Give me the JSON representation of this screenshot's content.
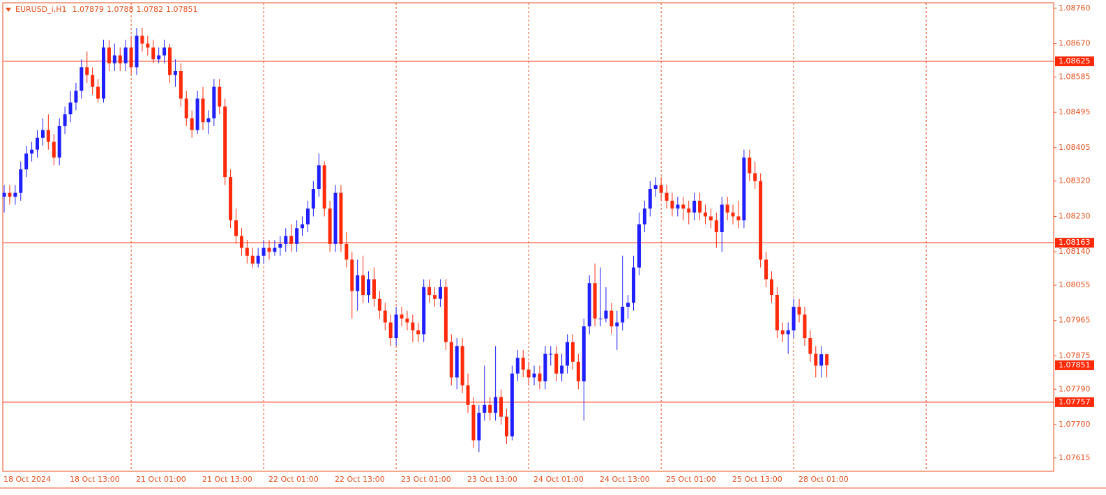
{
  "chart_data": {
    "type": "candlestick",
    "title": "EURUSD_i,H1",
    "ohlc": [
      [
        1.0828,
        1.0831,
        1.0824,
        1.0829
      ],
      [
        1.0829,
        1.0831,
        1.0826,
        1.0828
      ],
      [
        1.0828,
        1.0831,
        1.0826,
        1.0829
      ],
      [
        1.0829,
        1.0837,
        1.0827,
        1.0835
      ],
      [
        1.0835,
        1.0841,
        1.0833,
        1.0839
      ],
      [
        1.0839,
        1.0842,
        1.0837,
        1.084
      ],
      [
        1.084,
        1.0845,
        1.0838,
        1.0843
      ],
      [
        1.0843,
        1.0848,
        1.0841,
        1.0845
      ],
      [
        1.0845,
        1.0849,
        1.084,
        1.0842
      ],
      [
        1.0842,
        1.0844,
        1.0836,
        1.0838
      ],
      [
        1.0838,
        1.0848,
        1.0836,
        1.0846
      ],
      [
        1.0846,
        1.0851,
        1.0844,
        1.0849
      ],
      [
        1.0849,
        1.0855,
        1.0847,
        1.0852
      ],
      [
        1.0852,
        1.0857,
        1.085,
        1.0855
      ],
      [
        1.0855,
        1.0863,
        1.0853,
        1.0861
      ],
      [
        1.0861,
        1.0865,
        1.0857,
        1.0859
      ],
      [
        1.0859,
        1.0861,
        1.0854,
        1.0856
      ],
      [
        1.0856,
        1.0858,
        1.0852,
        1.0853
      ],
      [
        1.0853,
        1.0868,
        1.0852,
        1.0866
      ],
      [
        1.0866,
        1.0868,
        1.086,
        1.0862
      ],
      [
        1.0862,
        1.0867,
        1.086,
        1.0864
      ],
      [
        1.0864,
        1.0866,
        1.086,
        1.0862
      ],
      [
        1.0862,
        1.0868,
        1.086,
        1.0866
      ],
      [
        1.0866,
        1.0869,
        1.0859,
        1.0861
      ],
      [
        1.0861,
        1.0871,
        1.0859,
        1.0869
      ],
      [
        1.0869,
        1.0871,
        1.0865,
        1.0867
      ],
      [
        1.0867,
        1.0869,
        1.0864,
        1.0866
      ],
      [
        1.0866,
        1.0868,
        1.0862,
        1.0863
      ],
      [
        1.0863,
        1.0866,
        1.0862,
        1.0864
      ],
      [
        1.0864,
        1.0868,
        1.0862,
        1.0866
      ],
      [
        1.0866,
        1.0867,
        1.0857,
        1.0859
      ],
      [
        1.0859,
        1.0863,
        1.0856,
        1.086
      ],
      [
        1.086,
        1.0862,
        1.0851,
        1.0853
      ],
      [
        1.0853,
        1.0855,
        1.0846,
        1.0848
      ],
      [
        1.0848,
        1.085,
        1.0843,
        1.0845
      ],
      [
        1.0845,
        1.0855,
        1.0844,
        1.0853
      ],
      [
        1.0853,
        1.0856,
        1.0845,
        1.0847
      ],
      [
        1.0847,
        1.085,
        1.0844,
        1.0848
      ],
      [
        1.0848,
        1.0858,
        1.0846,
        1.0856
      ],
      [
        1.0856,
        1.0858,
        1.0849,
        1.0851
      ],
      [
        1.0851,
        1.0853,
        1.0831,
        1.0833
      ],
      [
        1.0833,
        1.0835,
        1.082,
        1.0822
      ],
      [
        1.0822,
        1.0825,
        1.0816,
        1.0818
      ],
      [
        1.0818,
        1.082,
        1.0813,
        1.0815
      ],
      [
        1.0815,
        1.0817,
        1.0811,
        1.0813
      ],
      [
        1.0813,
        1.0815,
        1.081,
        1.0811
      ],
      [
        1.0811,
        1.0815,
        1.081,
        1.0813
      ],
      [
        1.0813,
        1.0817,
        1.0811,
        1.0815
      ],
      [
        1.0815,
        1.0817,
        1.0812,
        1.0814
      ],
      [
        1.0814,
        1.0817,
        1.0813,
        1.0815
      ],
      [
        1.0815,
        1.0818,
        1.0813,
        1.0816
      ],
      [
        1.0816,
        1.082,
        1.0814,
        1.0818
      ],
      [
        1.0818,
        1.0821,
        1.0814,
        1.0816
      ],
      [
        1.0816,
        1.0822,
        1.0814,
        1.082
      ],
      [
        1.082,
        1.0823,
        1.0818,
        1.0821
      ],
      [
        1.0821,
        1.0827,
        1.0819,
        1.0825
      ],
      [
        1.0825,
        1.0832,
        1.0823,
        1.083
      ],
      [
        1.083,
        1.0839,
        1.0828,
        1.0836
      ],
      [
        1.0836,
        1.0837,
        1.0823,
        1.0825
      ],
      [
        1.0825,
        1.0827,
        1.0814,
        1.0816
      ],
      [
        1.0816,
        1.0831,
        1.0814,
        1.0829
      ],
      [
        1.0829,
        1.0831,
        1.0814,
        1.0816
      ],
      [
        1.0816,
        1.0819,
        1.081,
        1.0812
      ],
      [
        1.0812,
        1.0814,
        1.0797,
        1.0804
      ],
      [
        1.0804,
        1.0812,
        1.0799,
        1.0808
      ],
      [
        1.0808,
        1.0813,
        1.0801,
        1.0803
      ],
      [
        1.0803,
        1.0809,
        1.0801,
        1.0807
      ],
      [
        1.0807,
        1.081,
        1.08,
        1.0802
      ],
      [
        1.0802,
        1.0804,
        1.0797,
        1.0799
      ],
      [
        1.0799,
        1.0801,
        1.0794,
        1.0796
      ],
      [
        1.0796,
        1.0798,
        1.079,
        1.0792
      ],
      [
        1.0792,
        1.08,
        1.079,
        1.0798
      ],
      [
        1.0798,
        1.08,
        1.0795,
        1.0797
      ],
      [
        1.0797,
        1.0799,
        1.0794,
        1.0796
      ],
      [
        1.0796,
        1.0798,
        1.0791,
        1.0794
      ],
      [
        1.0794,
        1.0796,
        1.0791,
        1.0793
      ],
      [
        1.0793,
        1.0807,
        1.0791,
        1.0805
      ],
      [
        1.0805,
        1.0807,
        1.0801,
        1.0803
      ],
      [
        1.0803,
        1.0805,
        1.08,
        1.0802
      ],
      [
        1.0802,
        1.0807,
        1.08,
        1.0805
      ],
      [
        1.0805,
        1.0807,
        1.0789,
        1.0791
      ],
      [
        1.0791,
        1.0793,
        1.078,
        1.0782
      ],
      [
        1.0782,
        1.0792,
        1.0779,
        1.079
      ],
      [
        1.079,
        1.0792,
        1.0778,
        1.078
      ],
      [
        1.078,
        1.0783,
        1.0773,
        1.0775
      ],
      [
        1.0775,
        1.0777,
        1.0764,
        1.0766
      ],
      [
        1.0766,
        1.0775,
        1.0763,
        1.0773
      ],
      [
        1.0773,
        1.0785,
        1.0771,
        1.0775
      ],
      [
        1.0775,
        1.0777,
        1.0771,
        1.0773
      ],
      [
        1.0773,
        1.079,
        1.0771,
        1.0777
      ],
      [
        1.0777,
        1.0779,
        1.077,
        1.0772
      ],
      [
        1.0772,
        1.0774,
        1.0765,
        1.0767
      ],
      [
        1.0767,
        1.0785,
        1.0766,
        1.0783
      ],
      [
        1.0783,
        1.0789,
        1.0781,
        1.0787
      ],
      [
        1.0787,
        1.0789,
        1.0782,
        1.0784
      ],
      [
        1.0784,
        1.0786,
        1.078,
        1.0782
      ],
      [
        1.0782,
        1.0785,
        1.078,
        1.0783
      ],
      [
        1.0783,
        1.0785,
        1.0779,
        1.0781
      ],
      [
        1.0781,
        1.079,
        1.0779,
        1.0788
      ],
      [
        1.0788,
        1.079,
        1.0785,
        1.0788
      ],
      [
        1.0788,
        1.079,
        1.0781,
        1.0783
      ],
      [
        1.0783,
        1.0788,
        1.0781,
        1.0785
      ],
      [
        1.0785,
        1.0793,
        1.0783,
        1.0791
      ],
      [
        1.0791,
        1.0793,
        1.0784,
        1.0786
      ],
      [
        1.0786,
        1.0788,
        1.0779,
        1.0781
      ],
      [
        1.0781,
        1.0797,
        1.0771,
        1.0795
      ],
      [
        1.0795,
        1.0808,
        1.0793,
        1.0806
      ],
      [
        1.0806,
        1.0811,
        1.0795,
        1.0797
      ],
      [
        1.0797,
        1.081,
        1.0795,
        1.0797
      ],
      [
        1.0797,
        1.0805,
        1.0796,
        1.0799
      ],
      [
        1.0799,
        1.0801,
        1.0793,
        1.0795
      ],
      [
        1.0795,
        1.0799,
        1.0789,
        1.0796
      ],
      [
        1.0796,
        1.0813,
        1.0794,
        1.08
      ],
      [
        1.08,
        1.0803,
        1.0797,
        1.0801
      ],
      [
        1.0801,
        1.0813,
        1.0799,
        1.081
      ],
      [
        1.081,
        1.0824,
        1.0808,
        1.0821
      ],
      [
        1.0821,
        1.0827,
        1.0819,
        1.0825
      ],
      [
        1.0825,
        1.0832,
        1.0823,
        1.083
      ],
      [
        1.083,
        1.0833,
        1.0828,
        1.0831
      ],
      [
        1.0831,
        1.0833,
        1.0827,
        1.0829
      ],
      [
        1.0829,
        1.0831,
        1.0825,
        1.0827
      ],
      [
        1.0827,
        1.0829,
        1.0823,
        1.0825
      ],
      [
        1.0825,
        1.0828,
        1.0823,
        1.0826
      ],
      [
        1.0826,
        1.0828,
        1.0822,
        1.0825
      ],
      [
        1.0825,
        1.0827,
        1.0821,
        1.0824
      ],
      [
        1.0824,
        1.0829,
        1.0822,
        1.0827
      ],
      [
        1.0827,
        1.0829,
        1.0822,
        1.0824
      ],
      [
        1.0824,
        1.0826,
        1.0821,
        1.0823
      ],
      [
        1.0823,
        1.0825,
        1.082,
        1.0822
      ],
      [
        1.0822,
        1.0824,
        1.0815,
        1.0819
      ],
      [
        1.0819,
        1.0828,
        1.0814,
        1.0826
      ],
      [
        1.0826,
        1.0828,
        1.0822,
        1.0824
      ],
      [
        1.0824,
        1.0826,
        1.0821,
        1.0823
      ],
      [
        1.0823,
        1.0827,
        1.082,
        1.0822
      ],
      [
        1.0822,
        1.084,
        1.082,
        1.0838
      ],
      [
        1.0838,
        1.084,
        1.0832,
        1.0834
      ],
      [
        1.0834,
        1.0837,
        1.083,
        1.0832
      ],
      [
        1.0832,
        1.0834,
        1.081,
        1.0812
      ],
      [
        1.0812,
        1.0814,
        1.0805,
        1.0807
      ],
      [
        1.0807,
        1.0809,
        1.0801,
        1.0803
      ],
      [
        1.0803,
        1.0805,
        1.0792,
        1.0794
      ],
      [
        1.0794,
        1.0796,
        1.0791,
        1.0793
      ],
      [
        1.0793,
        1.0796,
        1.0788,
        1.0794
      ],
      [
        1.0794,
        1.0802,
        1.0792,
        1.08
      ],
      [
        1.08,
        1.0802,
        1.0796,
        1.0798
      ],
      [
        1.0798,
        1.08,
        1.079,
        1.0792
      ],
      [
        1.0792,
        1.0794,
        1.0786,
        1.0788
      ],
      [
        1.0788,
        1.079,
        1.0782,
        1.0785
      ],
      [
        1.0785,
        1.079,
        1.0782,
        1.07879
      ],
      [
        1.07879,
        1.0788,
        1.0782,
        1.07851
      ]
    ],
    "categories": [
      "18 Oct 2024",
      null,
      null,
      null,
      null,
      null,
      null,
      null,
      null,
      null,
      null,
      null,
      "18 Oct 13:00",
      null,
      null,
      null,
      null,
      null,
      null,
      null,
      null,
      null,
      null,
      null,
      "21 Oct 01:00",
      null,
      null,
      null,
      null,
      null,
      null,
      null,
      null,
      null,
      null,
      null,
      "21 Oct 13:00",
      null,
      null,
      null,
      null,
      null,
      null,
      null,
      null,
      null,
      null,
      null,
      "22 Oct 01:00",
      null,
      null,
      null,
      null,
      null,
      null,
      null,
      null,
      null,
      null,
      null,
      "22 Oct 13:00",
      null,
      null,
      null,
      null,
      null,
      null,
      null,
      null,
      null,
      null,
      null,
      "23 Oct 01:00",
      null,
      null,
      null,
      null,
      null,
      null,
      null,
      null,
      null,
      null,
      null,
      "23 Oct 13:00",
      null,
      null,
      null,
      null,
      null,
      null,
      null,
      null,
      null,
      null,
      null,
      "24 Oct 01:00",
      null,
      null,
      null,
      null,
      null,
      null,
      null,
      null,
      null,
      null,
      null,
      "24 Oct 13:00",
      null,
      null,
      null,
      null,
      null,
      null,
      null,
      null,
      null,
      null,
      null,
      "25 Oct 01:00",
      null,
      null,
      null,
      null,
      null,
      null,
      null,
      null,
      null,
      null,
      null,
      "25 Oct 13:00",
      null,
      null,
      null,
      null,
      null,
      null,
      null,
      null,
      null,
      null,
      null,
      "28 Oct 01:00",
      null,
      null,
      null,
      null,
      null
    ],
    "up_color": "#1f1fff",
    "down_color": "#ff2a0a",
    "axis_color": "#e8501e",
    "levels": [
      1.08625,
      1.08163,
      1.07757
    ],
    "ylim": [
      1.07581,
      1.08774
    ],
    "yticks": [
      {
        "value": 1.0876,
        "label": "1.08760"
      },
      {
        "value": 1.0867,
        "label": "1.08670"
      },
      1.08585,
      1.08495,
      1.08405,
      {
        "value": 1.0832,
        "label": "1.08320"
      },
      {
        "value": 1.0823,
        "label": "1.08230"
      },
      {
        "value": 1.0814,
        "label": "1.08140"
      },
      1.08055,
      1.07965,
      1.07875,
      {
        "value": 1.0779,
        "label": "1.07790"
      },
      {
        "value": 1.077,
        "label": "1.07700"
      },
      1.07615
    ]
  }
}
